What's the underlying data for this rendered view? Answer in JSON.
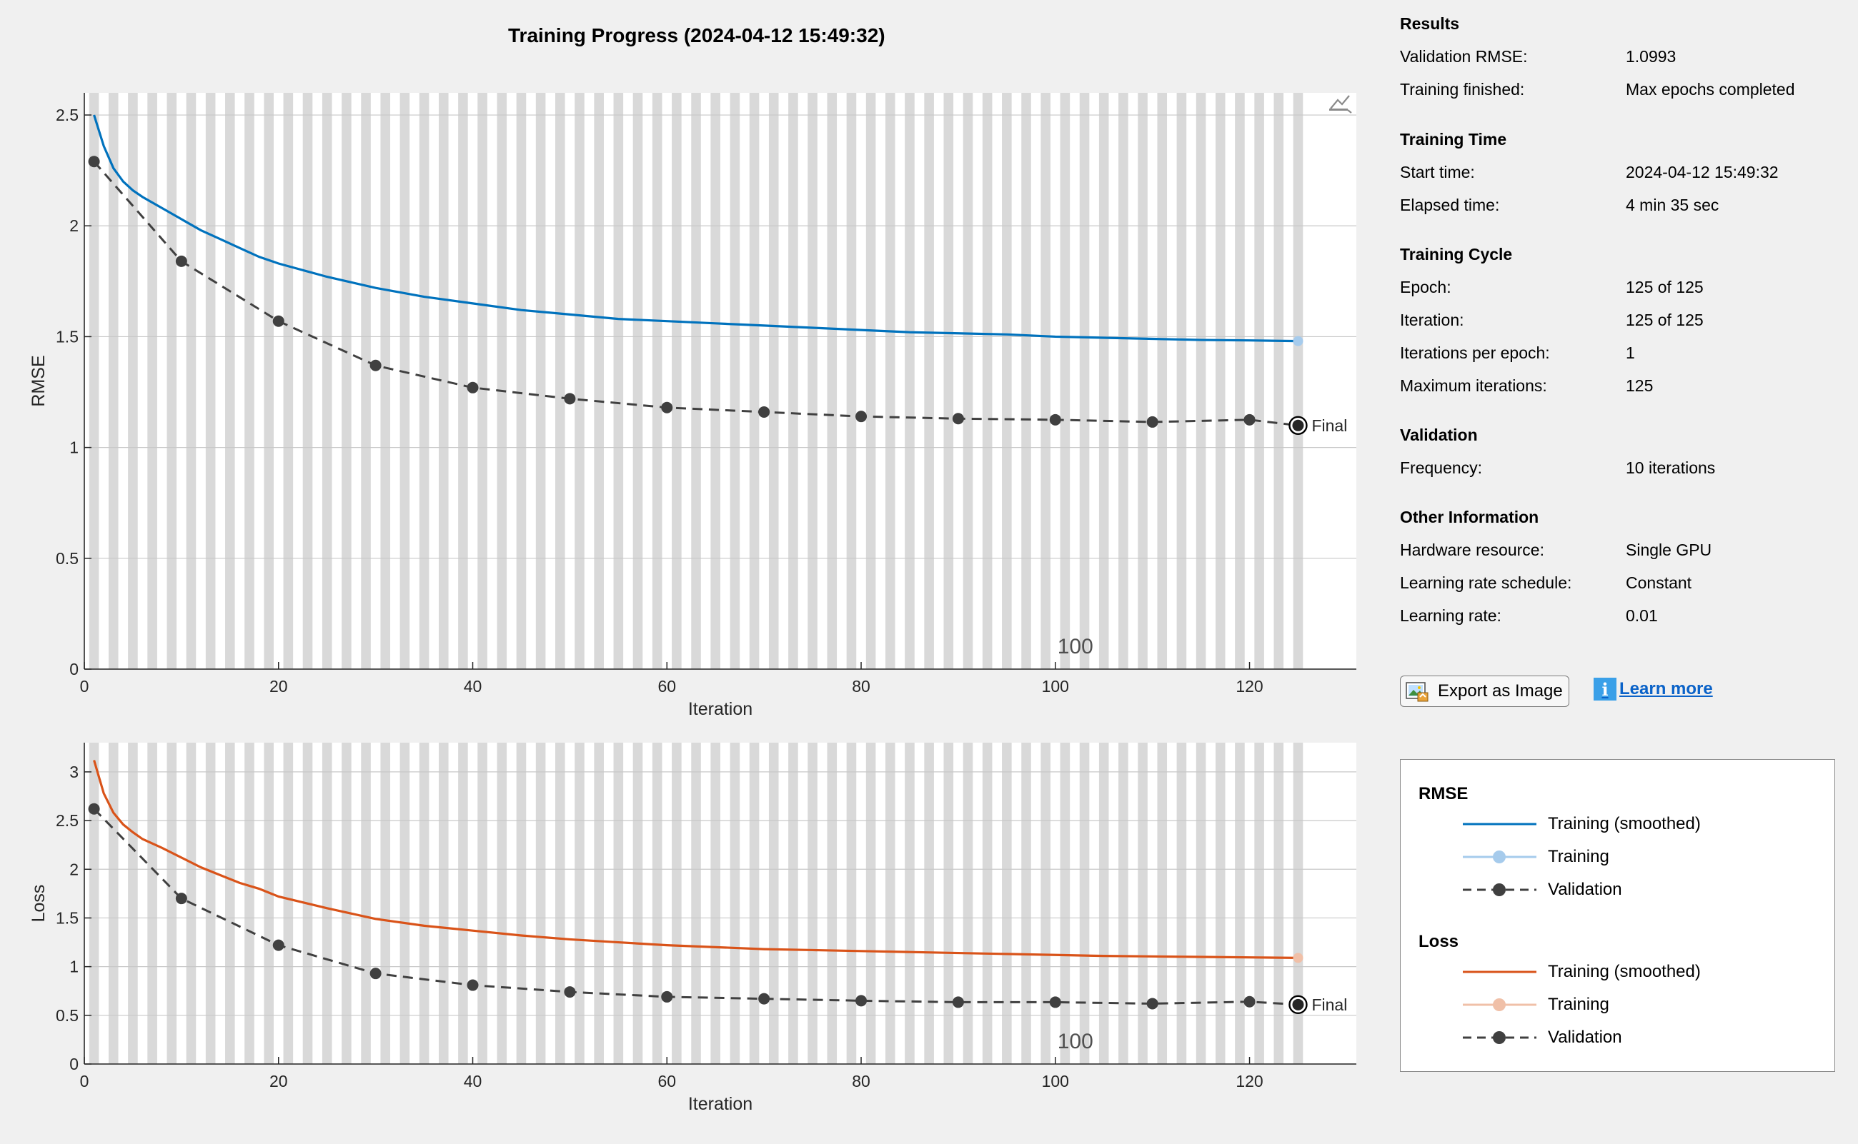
{
  "title": "Training Progress (2024-04-12 15:49:32)",
  "info": {
    "sections": [
      {
        "title": "Results",
        "rows": [
          {
            "label": "Validation RMSE:",
            "value": "1.0993"
          },
          {
            "label": "Training finished:",
            "value": "Max epochs completed"
          }
        ]
      },
      {
        "title": "Training Time",
        "rows": [
          {
            "label": "Start time:",
            "value": "2024-04-12 15:49:32"
          },
          {
            "label": "Elapsed time:",
            "value": "4 min 35 sec"
          }
        ]
      },
      {
        "title": "Training Cycle",
        "rows": [
          {
            "label": "Epoch:",
            "value": "125 of 125"
          },
          {
            "label": "Iteration:",
            "value": "125 of 125"
          },
          {
            "label": "Iterations per epoch:",
            "value": "1"
          },
          {
            "label": "Maximum iterations:",
            "value": "125"
          }
        ]
      },
      {
        "title": "Validation",
        "rows": [
          {
            "label": "Frequency:",
            "value": "10 iterations"
          }
        ]
      },
      {
        "title": "Other Information",
        "rows": [
          {
            "label": "Hardware resource:",
            "value": "Single GPU"
          },
          {
            "label": "Learning rate schedule:",
            "value": "Constant"
          },
          {
            "label": "Learning rate:",
            "value": "0.01"
          }
        ]
      }
    ]
  },
  "buttons": {
    "export_label": "Export as Image",
    "learn_more_label": "Learn more"
  },
  "icons": {
    "export": "export-image-icon",
    "info": "info-icon",
    "axes_toolbar": "axes-toolbar-icon"
  },
  "legend": {
    "groups": [
      {
        "title": "RMSE",
        "items": [
          {
            "label": "Training (smoothed)",
            "style": "solid",
            "color": "#0072bd"
          },
          {
            "label": "Training",
            "style": "solid-marker",
            "color": "#a6cbec"
          },
          {
            "label": "Validation",
            "style": "dashed-marker",
            "color": "#404040"
          }
        ]
      },
      {
        "title": "Loss",
        "items": [
          {
            "label": "Training (smoothed)",
            "style": "solid",
            "color": "#d95319"
          },
          {
            "label": "Training",
            "style": "solid-marker",
            "color": "#f0c0a8"
          },
          {
            "label": "Validation",
            "style": "dashed-marker",
            "color": "#404040"
          }
        ]
      }
    ]
  },
  "colors": {
    "rmse_smoothed": "#0072bd",
    "rmse_training": "#a6cbec",
    "loss_smoothed": "#d95319",
    "loss_training": "#f0c0a8",
    "validation": "#404040",
    "epoch_stripe": "#d9d9d9"
  },
  "chart_data": [
    {
      "type": "line",
      "xlabel": "Iteration",
      "ylabel": "RMSE",
      "xlim": [
        0,
        131
      ],
      "ylim": [
        0,
        2.6
      ],
      "xticks": [
        0,
        20,
        40,
        60,
        80,
        100,
        120
      ],
      "yticks": [
        0,
        0.5,
        1,
        1.5,
        2,
        2.5
      ],
      "epoch_marker_label": "100",
      "epoch_marker_x": 100,
      "final_label": "Final",
      "series": [
        {
          "name": "Training (smoothed)",
          "x": [
            1,
            2,
            3,
            4,
            5,
            6,
            8,
            10,
            12,
            14,
            16,
            18,
            20,
            25,
            30,
            35,
            40,
            45,
            50,
            55,
            60,
            65,
            70,
            75,
            80,
            85,
            90,
            95,
            100,
            105,
            110,
            115,
            120,
            125
          ],
          "y": [
            2.5,
            2.36,
            2.26,
            2.2,
            2.16,
            2.13,
            2.08,
            2.03,
            1.98,
            1.94,
            1.9,
            1.86,
            1.83,
            1.77,
            1.72,
            1.68,
            1.65,
            1.62,
            1.6,
            1.58,
            1.57,
            1.56,
            1.55,
            1.54,
            1.53,
            1.52,
            1.515,
            1.51,
            1.5,
            1.495,
            1.49,
            1.485,
            1.483,
            1.48
          ]
        },
        {
          "name": "Training",
          "x": [
            125
          ],
          "y": [
            1.48
          ]
        },
        {
          "name": "Validation",
          "x": [
            1,
            10,
            20,
            30,
            40,
            50,
            60,
            70,
            80,
            90,
            100,
            110,
            120,
            125
          ],
          "y": [
            2.29,
            1.84,
            1.57,
            1.37,
            1.27,
            1.22,
            1.18,
            1.16,
            1.14,
            1.13,
            1.125,
            1.115,
            1.125,
            1.0993
          ]
        }
      ]
    },
    {
      "type": "line",
      "xlabel": "Iteration",
      "ylabel": "Loss",
      "xlim": [
        0,
        131
      ],
      "ylim": [
        0,
        3.3
      ],
      "xticks": [
        0,
        20,
        40,
        60,
        80,
        100,
        120
      ],
      "yticks": [
        0,
        0.5,
        1,
        1.5,
        2,
        2.5,
        3
      ],
      "ytick_labels": [
        "0",
        "0.5",
        "1",
        "1.5",
        "2",
        "2.5",
        "3"
      ],
      "epoch_marker_label": "100",
      "epoch_marker_x": 100,
      "final_label": "Final",
      "series": [
        {
          "name": "Training (smoothed)",
          "x": [
            1,
            2,
            3,
            4,
            5,
            6,
            8,
            10,
            12,
            14,
            16,
            18,
            20,
            25,
            30,
            35,
            40,
            45,
            50,
            55,
            60,
            65,
            70,
            75,
            80,
            85,
            90,
            95,
            100,
            105,
            110,
            115,
            120,
            125
          ],
          "y": [
            3.12,
            2.78,
            2.58,
            2.46,
            2.38,
            2.31,
            2.22,
            2.12,
            2.02,
            1.94,
            1.86,
            1.8,
            1.72,
            1.6,
            1.49,
            1.42,
            1.37,
            1.32,
            1.28,
            1.25,
            1.22,
            1.2,
            1.18,
            1.17,
            1.16,
            1.15,
            1.14,
            1.13,
            1.12,
            1.11,
            1.105,
            1.1,
            1.095,
            1.09
          ]
        },
        {
          "name": "Training",
          "x": [
            125
          ],
          "y": [
            1.09
          ]
        },
        {
          "name": "Validation",
          "x": [
            1,
            10,
            20,
            30,
            40,
            50,
            60,
            70,
            80,
            90,
            100,
            110,
            120,
            125
          ],
          "y": [
            2.62,
            1.7,
            1.22,
            0.93,
            0.81,
            0.74,
            0.69,
            0.67,
            0.65,
            0.635,
            0.635,
            0.62,
            0.64,
            0.61
          ]
        }
      ]
    }
  ]
}
